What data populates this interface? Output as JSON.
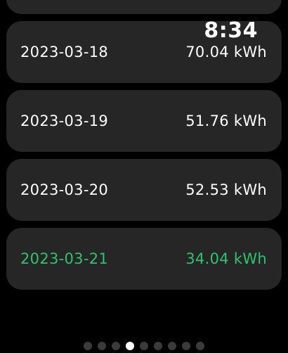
{
  "status": {
    "time": "8:34"
  },
  "rows": [
    {
      "date": "2023-03-18",
      "value": "70.04 kWh"
    },
    {
      "date": "2023-03-19",
      "value": "51.76 kWh"
    },
    {
      "date": "2023-03-20",
      "value": "52.53 kWh"
    },
    {
      "date": "2023-03-21",
      "value": "34.04 kWh"
    }
  ],
  "highlight_color": "#28c76a",
  "pager": {
    "count": 9,
    "current": 4
  }
}
